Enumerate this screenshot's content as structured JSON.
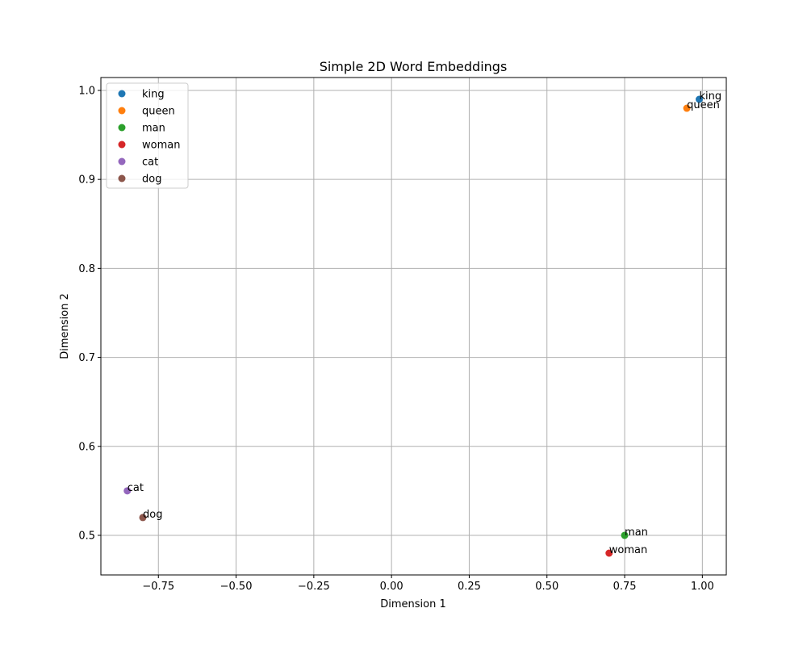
{
  "chart_data": {
    "type": "scatter",
    "title": "Simple 2D Word Embeddings",
    "xlabel": "Dimension 1",
    "ylabel": "Dimension 2",
    "xlim": [
      -0.935,
      1.077
    ],
    "ylim": [
      0.4555,
      1.0145
    ],
    "xticks": [
      -0.75,
      -0.5,
      -0.25,
      0.0,
      0.25,
      0.5,
      0.75,
      1.0
    ],
    "xtick_labels": [
      "−0.75",
      "−0.50",
      "−0.25",
      "0.00",
      "0.25",
      "0.50",
      "0.75",
      "1.00"
    ],
    "yticks": [
      0.5,
      0.6,
      0.7,
      0.8,
      0.9,
      1.0
    ],
    "ytick_labels": [
      "0.5",
      "0.6",
      "0.7",
      "0.8",
      "0.9",
      "1.0"
    ],
    "grid": true,
    "legend_position": "top-left",
    "series": [
      {
        "name": "king",
        "x": 0.99,
        "y": 0.99,
        "color": "#1f77b4"
      },
      {
        "name": "queen",
        "x": 0.95,
        "y": 0.98,
        "color": "#ff7f0e"
      },
      {
        "name": "man",
        "x": 0.75,
        "y": 0.5,
        "color": "#2ca02c"
      },
      {
        "name": "woman",
        "x": 0.7,
        "y": 0.48,
        "color": "#d62728"
      },
      {
        "name": "cat",
        "x": -0.85,
        "y": 0.55,
        "color": "#9467bd"
      },
      {
        "name": "dog",
        "x": -0.8,
        "y": 0.52,
        "color": "#8c564b"
      }
    ]
  }
}
